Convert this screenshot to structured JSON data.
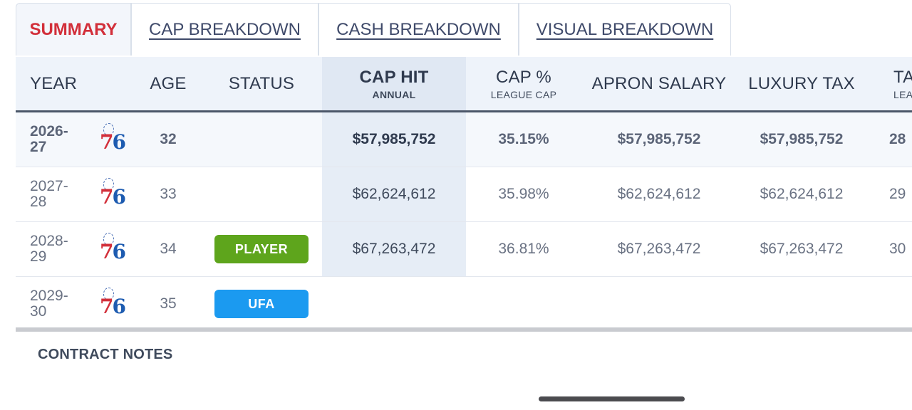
{
  "tabs": [
    "SUMMARY",
    "CAP BREAKDOWN",
    "CASH BREAKDOWN",
    "VISUAL BREAKDOWN"
  ],
  "headers": {
    "year": "YEAR",
    "age": "AGE",
    "status": "STATUS",
    "cap_hit": "CAP HIT",
    "cap_hit_sub": "ANNUAL",
    "cap_pct": "CAP %",
    "cap_pct_sub": "LEAGUE CAP",
    "apron": "APRON SALARY",
    "luxury": "LUXURY TAX",
    "tax": "TA",
    "tax_sub": "LEA"
  },
  "logo": {
    "number_left": "7",
    "number_right": "6"
  },
  "rows": [
    {
      "year": "2026-\n27",
      "age": "32",
      "status": "",
      "cap_hit": "$57,985,752",
      "cap_pct": "35.15%",
      "apron": "$57,985,752",
      "luxury": "$57,985,752",
      "tax": "28"
    },
    {
      "year": "2027-\n28",
      "age": "33",
      "status": "",
      "cap_hit": "$62,624,612",
      "cap_pct": "35.98%",
      "apron": "$62,624,612",
      "luxury": "$62,624,612",
      "tax": "29"
    },
    {
      "year": "2028-\n29",
      "age": "34",
      "status": "PLAYER",
      "cap_hit": "$67,263,472",
      "cap_pct": "36.81%",
      "apron": "$67,263,472",
      "luxury": "$67,263,472",
      "tax": "30"
    },
    {
      "year": "2029-\n30",
      "age": "35",
      "status": "UFA",
      "cap_hit": "",
      "cap_pct": "",
      "apron": "",
      "luxury": "",
      "tax": ""
    }
  ],
  "notes_title": "CONTRACT NOTES",
  "colors": {
    "active_tab": "#d22f3a",
    "player_badge": "#5ea51c",
    "ufa_badge": "#1b9af0"
  }
}
